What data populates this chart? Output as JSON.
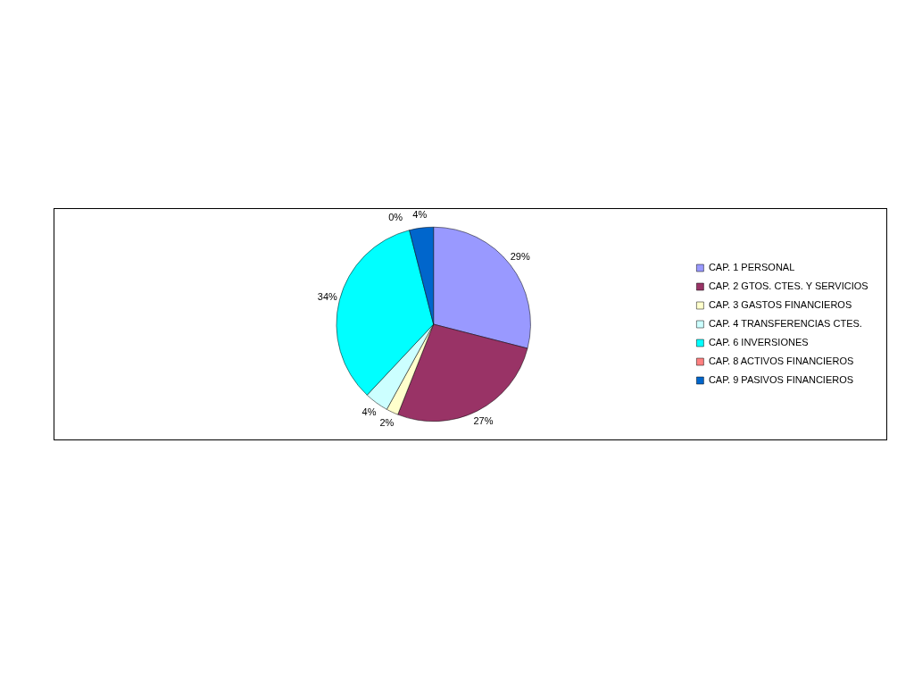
{
  "chart_data": {
    "type": "pie",
    "categories": [
      "CAP. 1 PERSONAL",
      "CAP. 2 GTOS. CTES. Y SERVICIOS",
      "CAP. 3 GASTOS FINANCIEROS",
      "CAP. 4 TRANSFERENCIAS CTES.",
      "CAP. 6 INVERSIONES",
      "CAP. 8 ACTIVOS FINANCIEROS",
      "CAP. 9 PASIVOS FINANCIEROS"
    ],
    "values": [
      29,
      27,
      2,
      4,
      34,
      0,
      4
    ],
    "value_labels": [
      "29%",
      "27%",
      "2%",
      "4%",
      "34%",
      "0%",
      "4%"
    ],
    "colors": [
      "#9999ff",
      "#993366",
      "#ffffcc",
      "#ccffff",
      "#00ffff",
      "#ff8080",
      "#0066cc"
    ],
    "legend": "right"
  }
}
